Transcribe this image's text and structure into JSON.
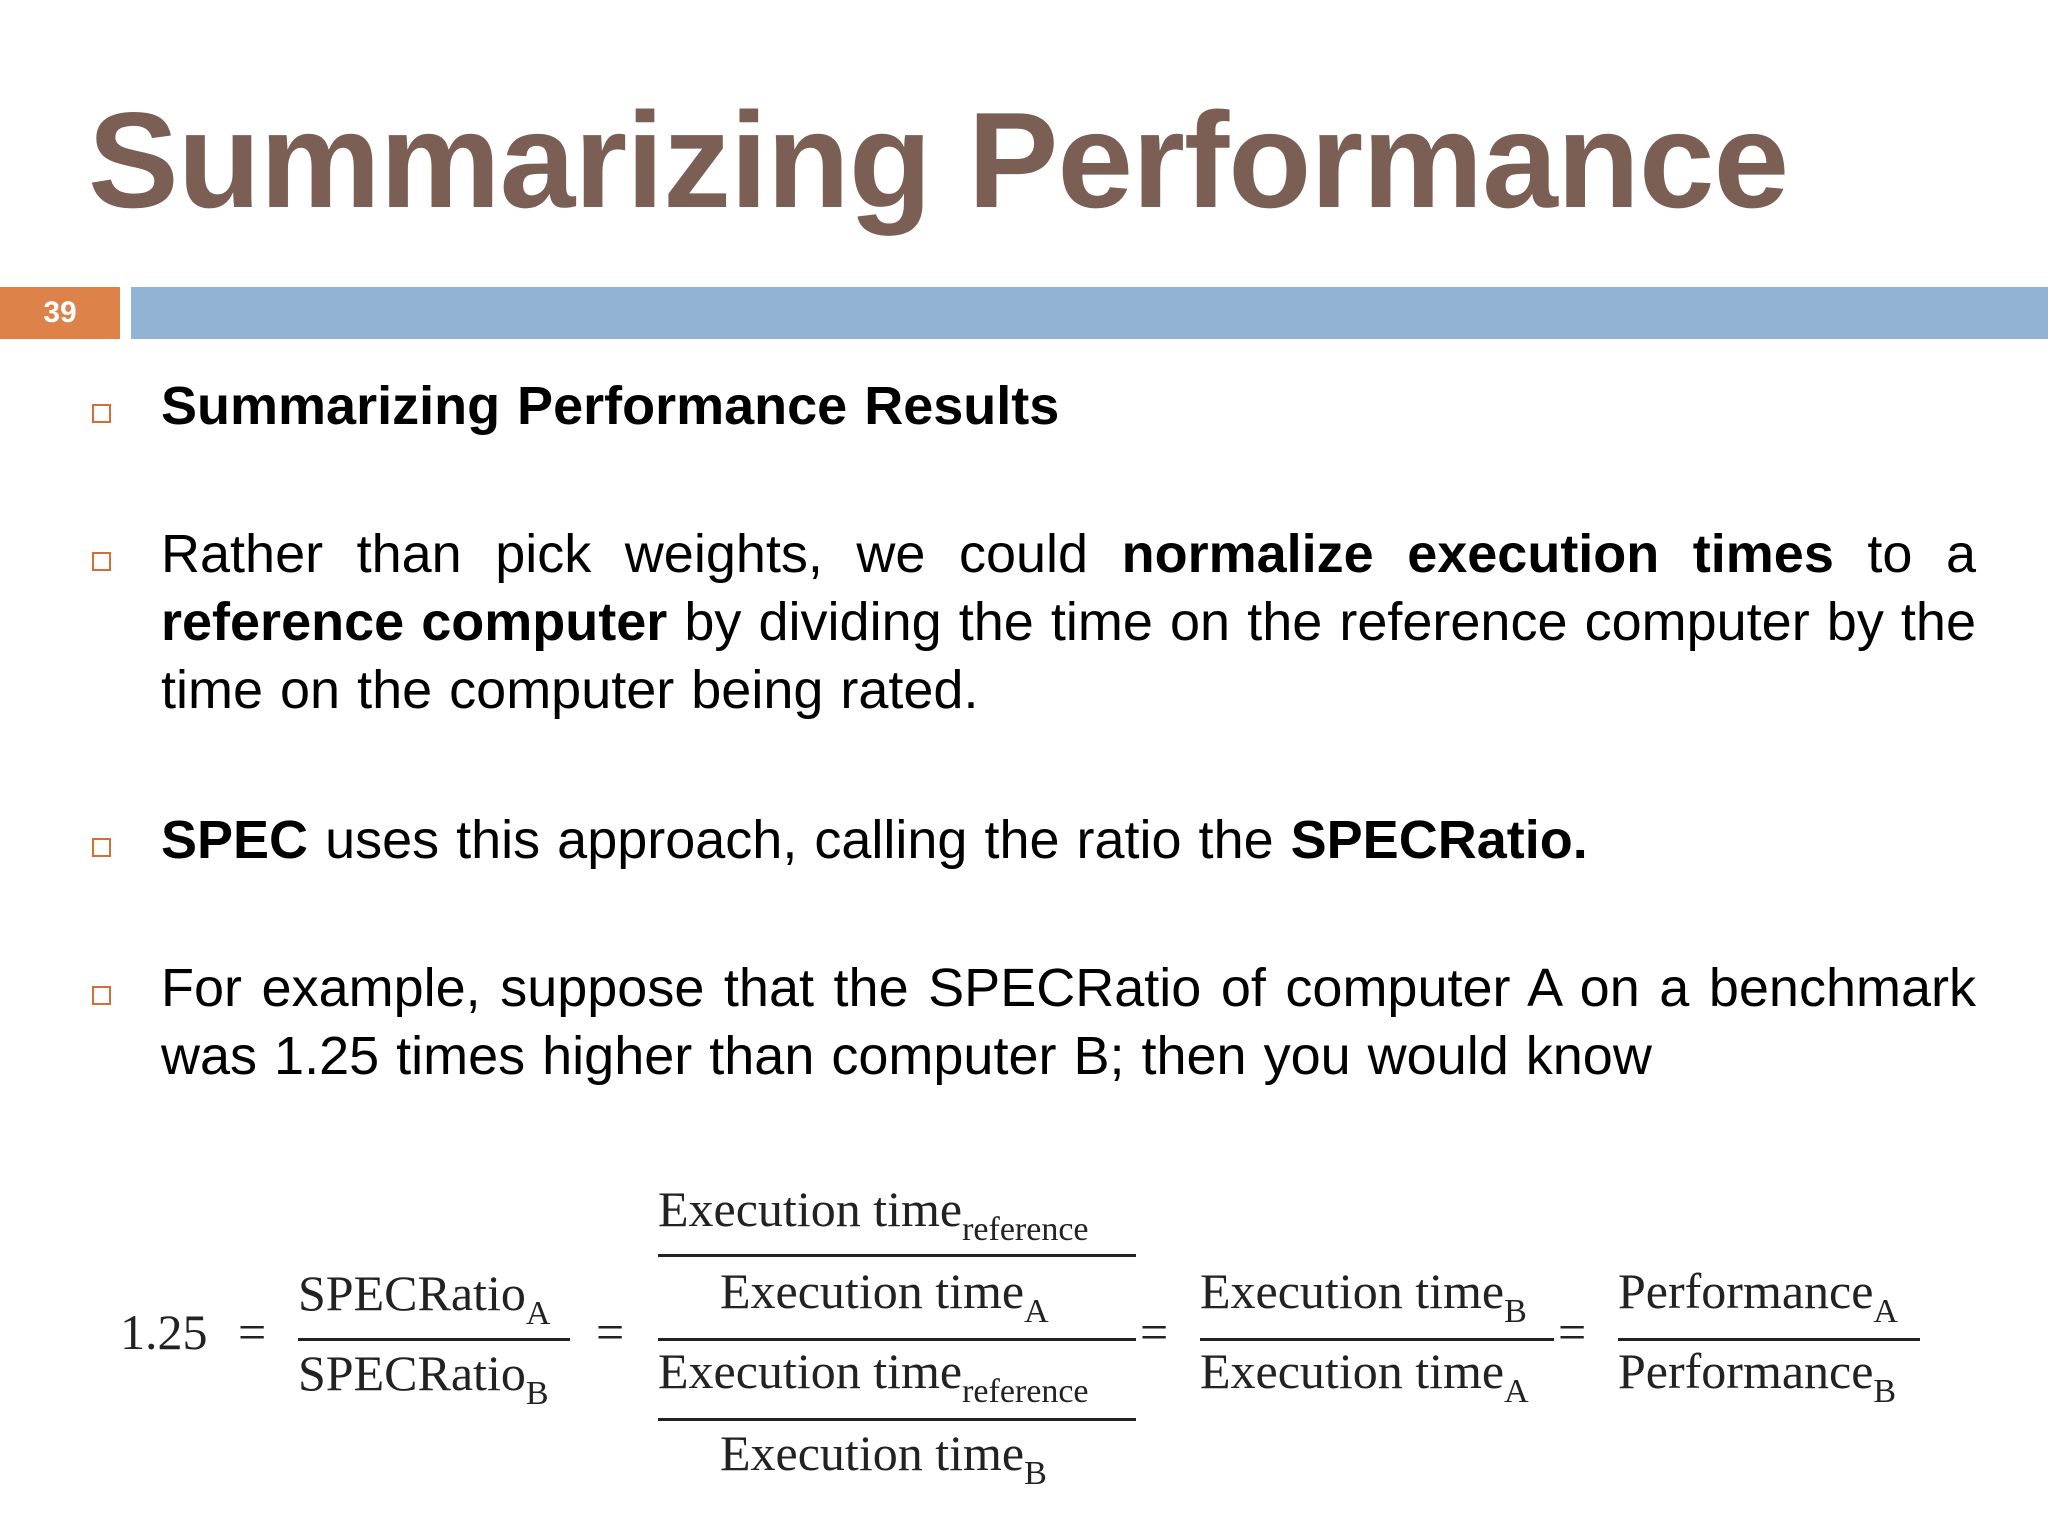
{
  "slide": {
    "title": "Summarizing Performance",
    "number": "39"
  },
  "bullets": [
    {
      "segments": [
        {
          "text": "Summarizing Performance Results",
          "bold": true
        }
      ]
    },
    {
      "segments": [
        {
          "text": "Rather than pick weights, we could ",
          "bold": false
        },
        {
          "text": "normalize execution times",
          "bold": true
        },
        {
          "text": " to a ",
          "bold": false
        },
        {
          "text": "reference computer",
          "bold": true
        },
        {
          "text": " by dividing the time on the reference computer by the time on the computer being rated.",
          "bold": false
        }
      ]
    },
    {
      "segments": [
        {
          "text": "SPEC",
          "bold": true
        },
        {
          "text": " uses this approach, calling the ratio the ",
          "bold": false
        },
        {
          "text": "SPECRatio.",
          "bold": true
        }
      ]
    },
    {
      "segments": [
        {
          "text": "For example, suppose that the SPECRatio of computer A on a benchmark was 1.25 times higher than  computer B; then you would know",
          "bold": false
        }
      ]
    }
  ],
  "formula": {
    "lhs": "1.25",
    "eq": "=",
    "spec_num": "SPECRatio",
    "spec_num_sub": "A",
    "spec_den": "SPECRatio",
    "spec_den_sub": "B",
    "et": "Execution time",
    "sub_reference": "reference",
    "sub_A": "A",
    "sub_B": "B",
    "perf": "Performance",
    "perf_num_sub": "A",
    "perf_den_sub": "B"
  }
}
